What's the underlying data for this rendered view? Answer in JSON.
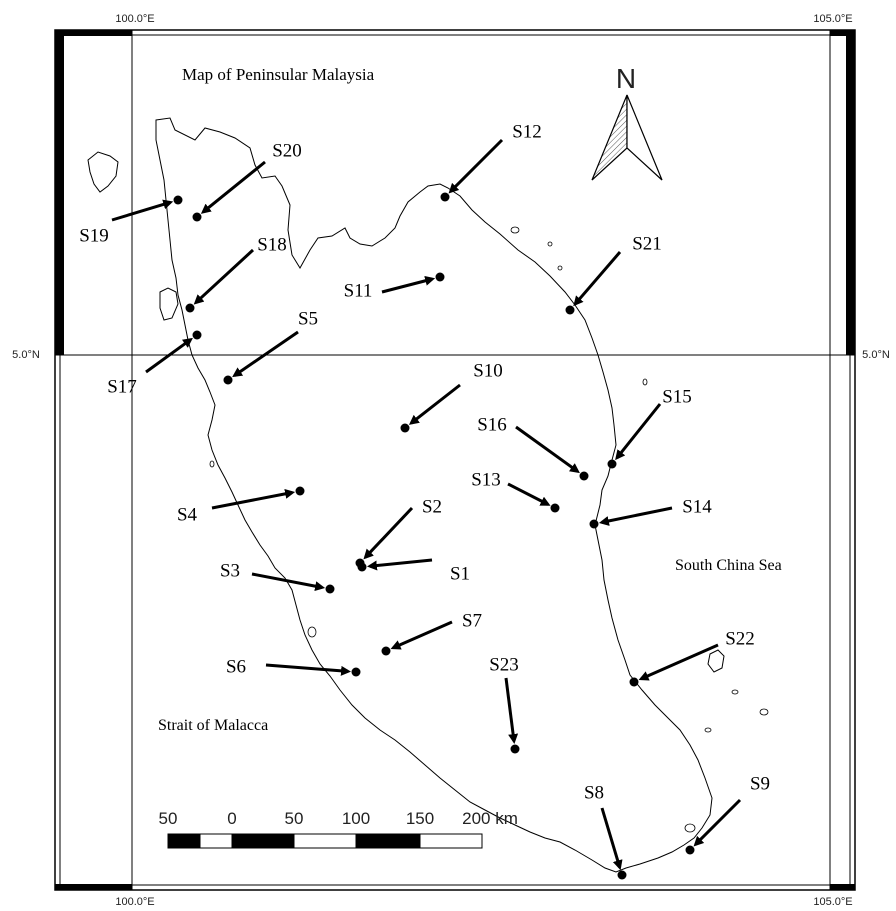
{
  "title": "Map of Peninsular Malaysia",
  "graticule": {
    "top_left_lon": "100.0°E",
    "top_right_lon": "105.0°E",
    "bottom_left_lon": "100.0°E",
    "bottom_right_lon": "105.0°E",
    "left_lat": "5.0°N",
    "right_lat": "5.0°N"
  },
  "north_arrow_label": "N",
  "sea_labels": {
    "east": "South China Sea",
    "west": "Strait of Malacca"
  },
  "scale_bar": {
    "ticks": [
      "50",
      "0",
      "50",
      "100",
      "150",
      "200 km"
    ]
  },
  "stations": [
    {
      "id": "S1",
      "label": "S1"
    },
    {
      "id": "S2",
      "label": "S2"
    },
    {
      "id": "S3",
      "label": "S3"
    },
    {
      "id": "S4",
      "label": "S4"
    },
    {
      "id": "S5",
      "label": "S5"
    },
    {
      "id": "S6",
      "label": "S6"
    },
    {
      "id": "S7",
      "label": "S7"
    },
    {
      "id": "S8",
      "label": "S8"
    },
    {
      "id": "S9",
      "label": "S9"
    },
    {
      "id": "S10",
      "label": "S10"
    },
    {
      "id": "S11",
      "label": "S11"
    },
    {
      "id": "S12",
      "label": "S12"
    },
    {
      "id": "S13",
      "label": "S13"
    },
    {
      "id": "S14",
      "label": "S14"
    },
    {
      "id": "S15",
      "label": "S15"
    },
    {
      "id": "S16",
      "label": "S16"
    },
    {
      "id": "S17",
      "label": "S17"
    },
    {
      "id": "S18",
      "label": "S18"
    },
    {
      "id": "S19",
      "label": "S19"
    },
    {
      "id": "S20",
      "label": "S20"
    },
    {
      "id": "S21",
      "label": "S21"
    },
    {
      "id": "S22",
      "label": "S22"
    },
    {
      "id": "S23",
      "label": "S23"
    }
  ]
}
